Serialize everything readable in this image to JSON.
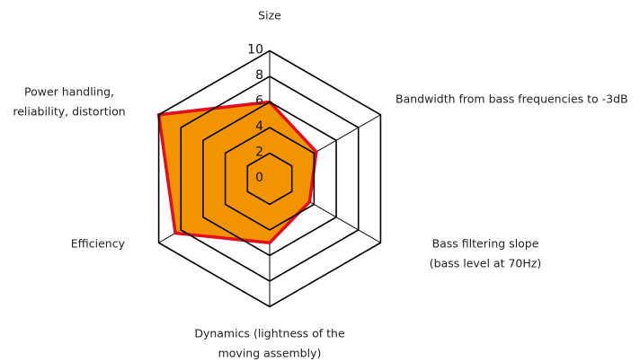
{
  "chart_data": {
    "type": "radar",
    "categories": [
      [
        "Size"
      ],
      [
        "Bandwidth from bass frequencies to -3dB"
      ],
      [
        "Bass filtering slope",
        "(bass level at 70Hz)"
      ],
      [
        "Dynamics (lightness of the",
        "moving assembly)"
      ],
      [
        "Efficiency"
      ],
      [
        "Power handling,",
        "reliability, distortion"
      ]
    ],
    "values": [
      6,
      4.2,
      3.6,
      5,
      8.5,
      10
    ],
    "color": "#f29400",
    "line_color": "#e30d1e",
    "rlim": [
      0,
      10
    ],
    "rticks": [
      0,
      2,
      4,
      6,
      8,
      10
    ],
    "grid": true
  }
}
